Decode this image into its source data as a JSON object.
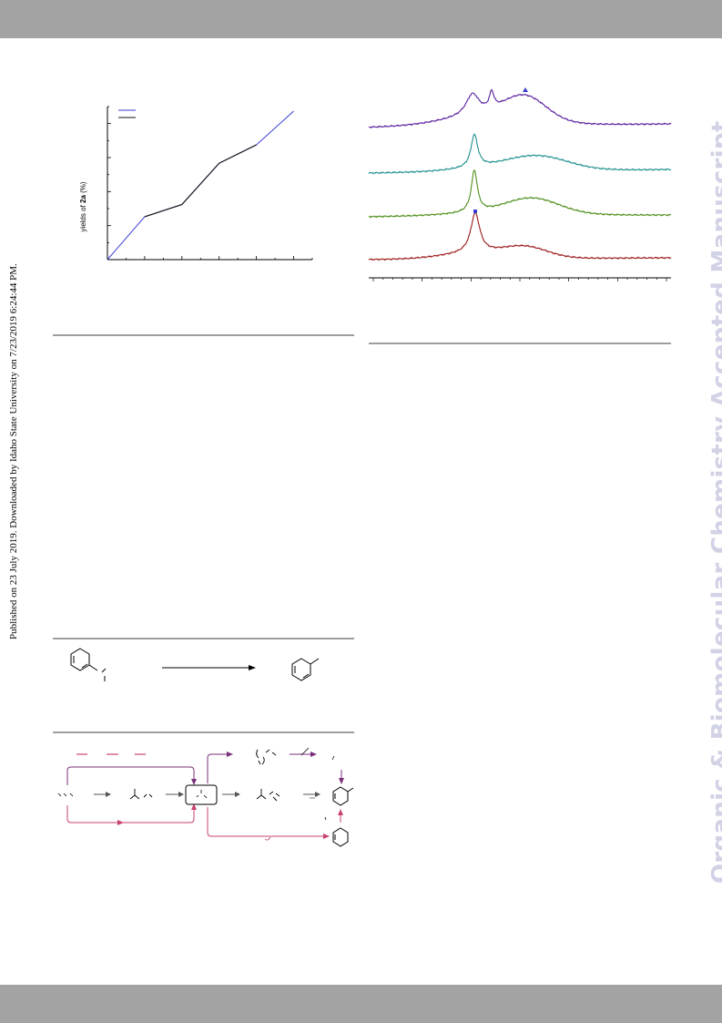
{
  "page": {
    "side_note": "Published on 23 July 2019. Downloaded by Idaho State University on 7/23/2019 6:24:44 PM.",
    "watermark": "Organic & Biomolecular Chemistry Accepted Manuscript"
  },
  "figure_left": {
    "ylabel_prefix": "yields of ",
    "ylabel_bold": "2a",
    "ylabel_suffix": " (%)",
    "legend_colors": [
      "#3b3bd6",
      "#111111"
    ]
  },
  "chart_data": [
    {
      "type": "line",
      "title": "",
      "xlabel": "",
      "ylabel": "yields of 2a (%)",
      "x": [
        0,
        1,
        2,
        3,
        4,
        5
      ],
      "xlim": [
        0,
        5.5
      ],
      "ylim": [
        0,
        100
      ],
      "grid": false,
      "series": [
        {
          "color": "#3b3bd6",
          "values": [
            0,
            28,
            36,
            63,
            75,
            97
          ]
        },
        {
          "color": "#111111",
          "values": [
            null,
            28,
            36,
            63,
            75,
            null
          ]
        }
      ]
    },
    {
      "type": "line",
      "title": "",
      "xlabel": "",
      "ylabel": "",
      "grid": false,
      "markers": [
        {
          "symbol": "triangle",
          "color": "#3b3bd6"
        },
        {
          "symbol": "square",
          "color": "#3b3bd6"
        }
      ],
      "series": [
        {
          "color": "#5a1f9e"
        },
        {
          "color": "#1f8f8f"
        },
        {
          "color": "#4f8f1a"
        },
        {
          "color": "#9b1a1a"
        }
      ]
    }
  ],
  "scheme_colors": {
    "purple": "#7a2f7a",
    "pink": "#c8426b",
    "arrow": "#555555"
  }
}
